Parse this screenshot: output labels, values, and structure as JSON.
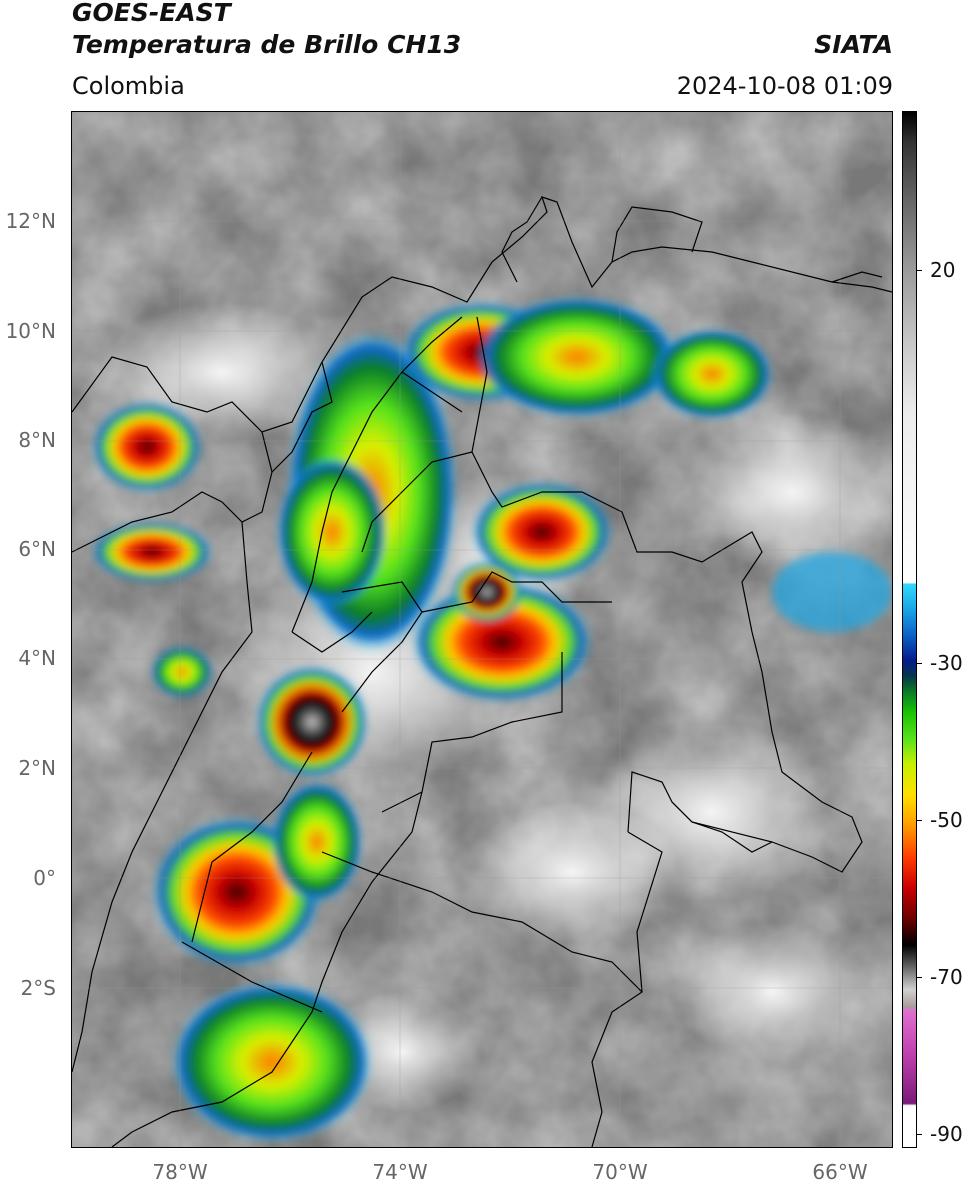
{
  "header": {
    "line1": "GOES-EAST",
    "line2": "Temperatura de Brillo CH13",
    "brand": "SIATA",
    "region": "Colombia",
    "timestamp": "2024-10-08 01:09"
  },
  "colorbar": {
    "ticks": [
      "20",
      "-30",
      "-50",
      "-70",
      "-90"
    ],
    "colors": [
      "#000000",
      "#ffffff",
      "#33d8ff",
      "#051c8c",
      "#19c400",
      "#ffe000",
      "#ff3d00",
      "#6a0000",
      "#e070d0",
      "#7a1a78"
    ]
  },
  "map": {
    "lat_labels": [
      "12°N",
      "10°N",
      "8°N",
      "6°N",
      "4°N",
      "2°N",
      "0°",
      "2°S"
    ],
    "lon_labels": [
      "78°W",
      "74°W",
      "70°W",
      "66°W"
    ]
  }
}
